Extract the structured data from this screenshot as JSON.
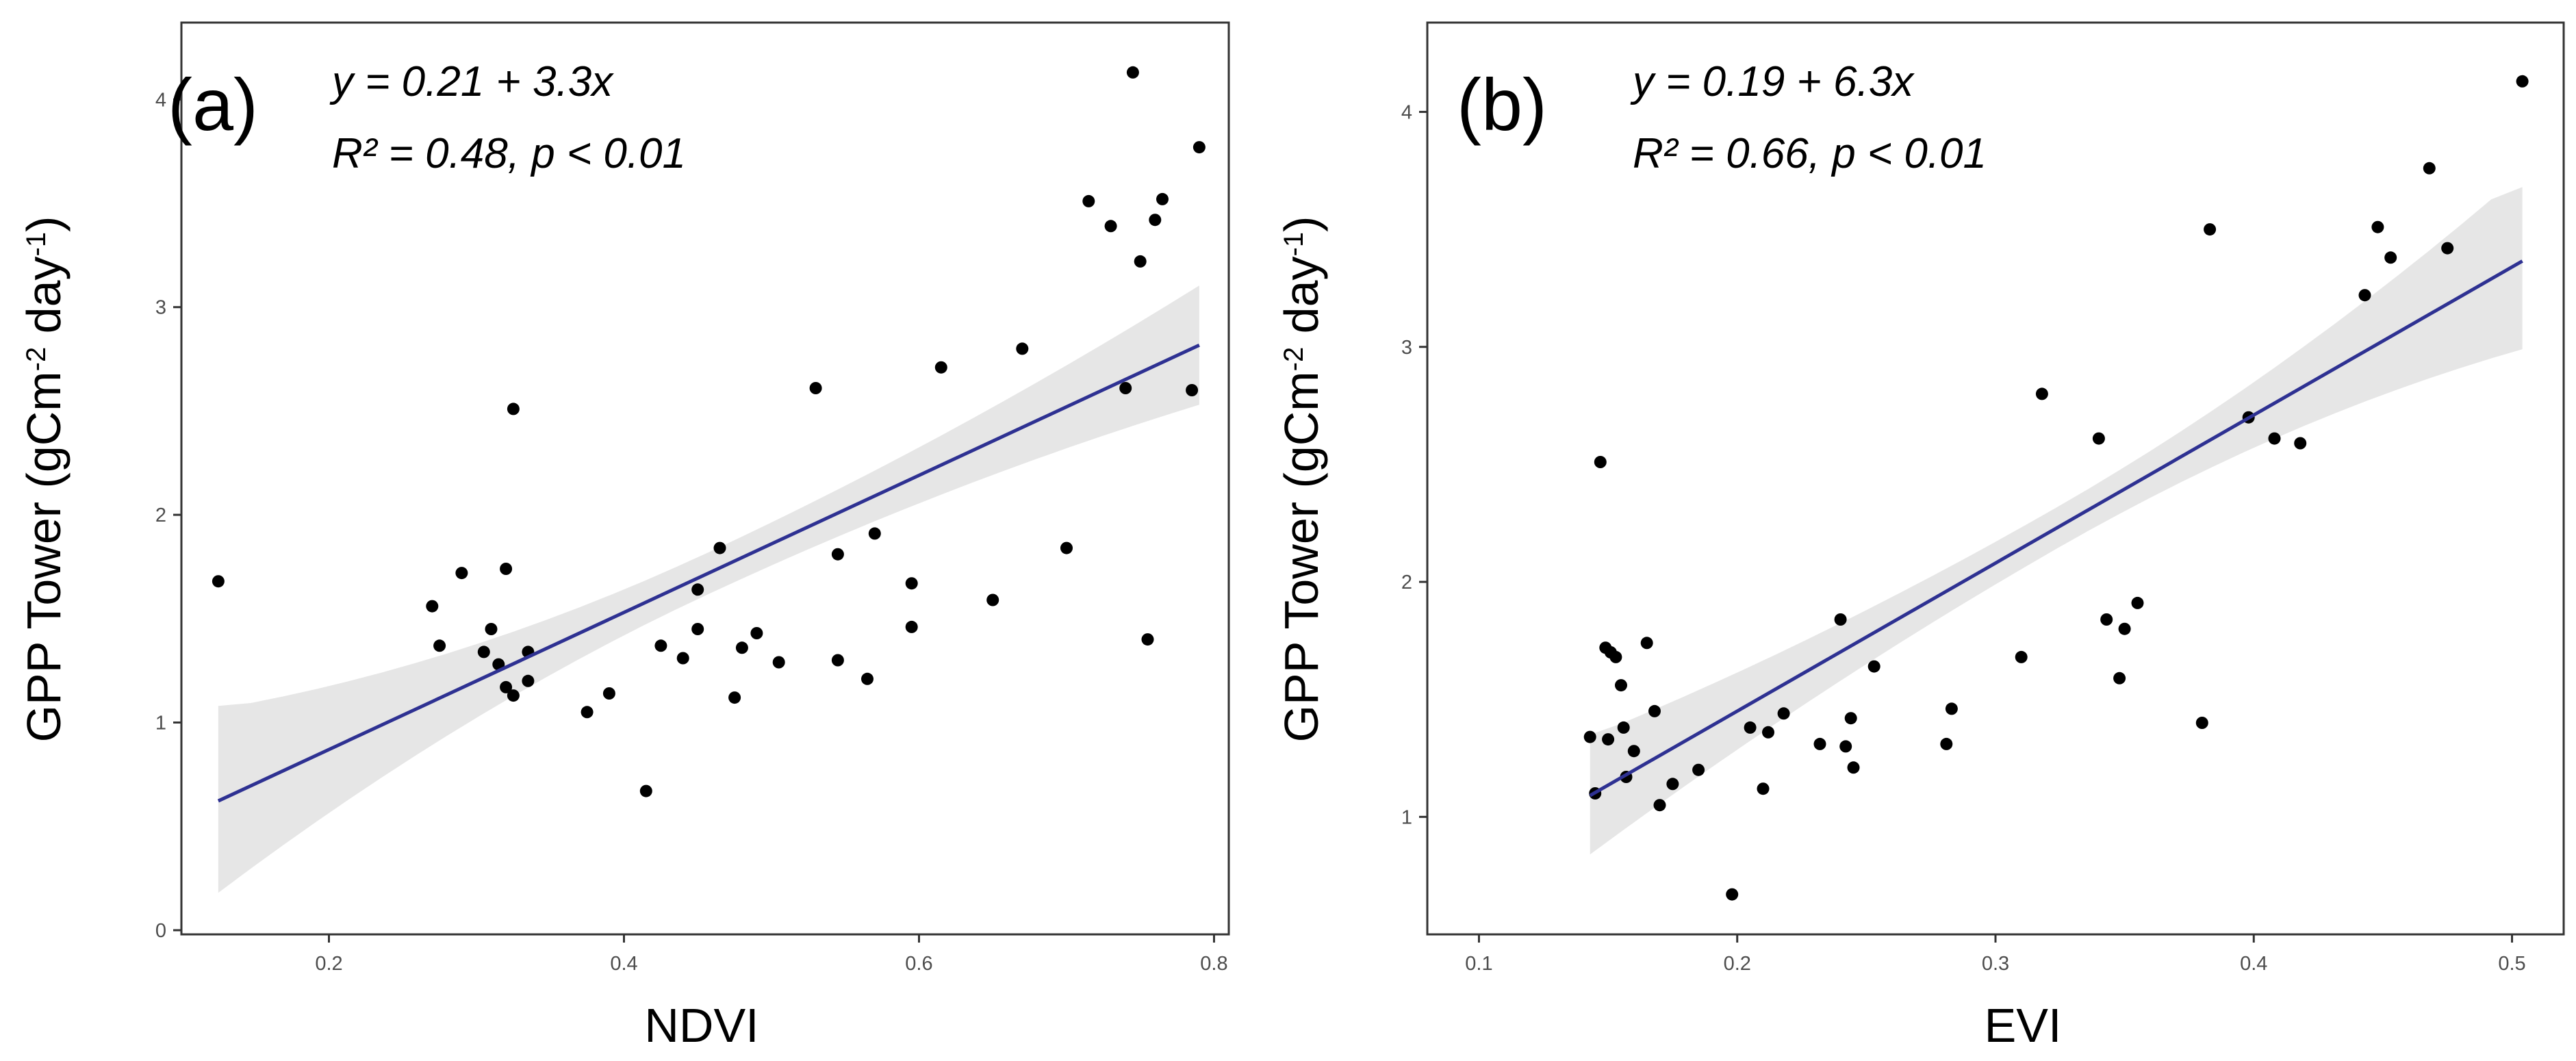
{
  "chart_data": [
    {
      "type": "scatter",
      "panel_label": "(a)",
      "equation": "y = 0.21 + 3.3x",
      "stats": "R² = 0.48,  p < 0.01",
      "xlabel": "NDVI",
      "ylabel": "GPP Tower (gCm",
      "ylabel_sup1": "-2",
      "ylabel_mid": " day",
      "ylabel_sup2": "-1",
      "ylabel_end": ")",
      "xlim": [
        0.1,
        0.81
      ],
      "ylim": [
        -0.02,
        4.37
      ],
      "x_ticks": [
        0.2,
        0.4,
        0.6,
        0.8
      ],
      "x_tick_labels": [
        "0.2",
        "0.4",
        "0.6",
        "0.8"
      ],
      "y_ticks": [
        0,
        1,
        2,
        3,
        4
      ],
      "y_tick_labels": [
        "0",
        "1",
        "2",
        "3",
        "4"
      ],
      "fit": {
        "intercept": 0.21,
        "slope": 3.3,
        "x_range": [
          0.125,
          0.79
        ],
        "ci_lower": [
          0.18,
          2.53
        ],
        "ci_upper": [
          1.08,
          3.2
        ]
      },
      "points": [
        [
          0.125,
          1.68
        ],
        [
          0.27,
          1.56
        ],
        [
          0.275,
          1.37
        ],
        [
          0.29,
          1.72
        ],
        [
          0.305,
          1.34
        ],
        [
          0.31,
          1.45
        ],
        [
          0.315,
          1.28
        ],
        [
          0.32,
          1.74
        ],
        [
          0.32,
          1.17
        ],
        [
          0.325,
          1.13
        ],
        [
          0.325,
          2.51
        ],
        [
          0.335,
          1.2
        ],
        [
          0.335,
          1.34
        ],
        [
          0.375,
          1.05
        ],
        [
          0.39,
          1.14
        ],
        [
          0.415,
          0.67
        ],
        [
          0.425,
          1.37
        ],
        [
          0.44,
          1.31
        ],
        [
          0.45,
          1.64
        ],
        [
          0.45,
          1.45
        ],
        [
          0.465,
          1.84
        ],
        [
          0.475,
          1.12
        ],
        [
          0.48,
          1.36
        ],
        [
          0.49,
          1.43
        ],
        [
          0.505,
          1.29
        ],
        [
          0.53,
          2.61
        ],
        [
          0.545,
          1.81
        ],
        [
          0.545,
          1.3
        ],
        [
          0.565,
          1.21
        ],
        [
          0.57,
          1.91
        ],
        [
          0.595,
          1.46
        ],
        [
          0.595,
          1.67
        ],
        [
          0.615,
          2.71
        ],
        [
          0.65,
          1.59
        ],
        [
          0.67,
          2.8
        ],
        [
          0.7,
          1.84
        ],
        [
          0.715,
          3.51
        ],
        [
          0.73,
          3.39
        ],
        [
          0.74,
          2.61
        ],
        [
          0.745,
          4.13
        ],
        [
          0.75,
          3.22
        ],
        [
          0.755,
          1.4
        ],
        [
          0.76,
          3.42
        ],
        [
          0.765,
          3.52
        ],
        [
          0.785,
          2.6
        ],
        [
          0.79,
          3.77
        ]
      ]
    },
    {
      "type": "scatter",
      "panel_label": "(b)",
      "equation": "y = 0.19 + 6.3x",
      "stats": "R² = 0.66,  p < 0.01",
      "xlabel": "EVI",
      "ylabel": "GPP Tower (gCm",
      "ylabel_sup1": "-2",
      "ylabel_mid": " day",
      "ylabel_sup2": "-1",
      "ylabel_end": ")",
      "xlim": [
        0.08,
        0.52
      ],
      "ylim": [
        0.5,
        4.38
      ],
      "x_ticks": [
        0.1,
        0.2,
        0.3,
        0.4,
        0.5
      ],
      "x_tick_labels": [
        "0.1",
        "0.2",
        "0.3",
        "0.4",
        "0.5"
      ],
      "y_ticks": [
        1,
        2,
        3,
        4
      ],
      "y_tick_labels": [
        "1",
        "2",
        "3",
        "4"
      ],
      "fit": {
        "intercept": 0.19,
        "slope": 6.3,
        "x_range": [
          0.143,
          0.504
        ],
        "ci_lower": [
          0.84,
          2.99
        ],
        "ci_upper": [
          1.35,
          3.68
        ]
      },
      "points": [
        [
          0.143,
          1.34
        ],
        [
          0.145,
          1.1
        ],
        [
          0.147,
          2.51
        ],
        [
          0.149,
          1.72
        ],
        [
          0.15,
          1.33
        ],
        [
          0.151,
          1.7
        ],
        [
          0.153,
          1.68
        ],
        [
          0.155,
          1.56
        ],
        [
          0.156,
          1.38
        ],
        [
          0.157,
          1.17
        ],
        [
          0.16,
          1.28
        ],
        [
          0.165,
          1.74
        ],
        [
          0.168,
          1.45
        ],
        [
          0.17,
          1.05
        ],
        [
          0.175,
          1.14
        ],
        [
          0.185,
          1.2
        ],
        [
          0.198,
          0.67
        ],
        [
          0.205,
          1.38
        ],
        [
          0.21,
          1.12
        ],
        [
          0.212,
          1.36
        ],
        [
          0.218,
          1.44
        ],
        [
          0.232,
          1.31
        ],
        [
          0.24,
          1.84
        ],
        [
          0.242,
          1.3
        ],
        [
          0.244,
          1.42
        ],
        [
          0.245,
          1.21
        ],
        [
          0.253,
          1.64
        ],
        [
          0.281,
          1.31
        ],
        [
          0.283,
          1.46
        ],
        [
          0.31,
          1.68
        ],
        [
          0.318,
          2.8
        ],
        [
          0.34,
          2.61
        ],
        [
          0.343,
          1.84
        ],
        [
          0.348,
          1.59
        ],
        [
          0.35,
          1.8
        ],
        [
          0.355,
          1.91
        ],
        [
          0.38,
          1.4
        ],
        [
          0.383,
          3.5
        ],
        [
          0.398,
          2.7
        ],
        [
          0.408,
          2.61
        ],
        [
          0.418,
          2.59
        ],
        [
          0.443,
          3.22
        ],
        [
          0.448,
          3.51
        ],
        [
          0.453,
          3.38
        ],
        [
          0.468,
          3.76
        ],
        [
          0.475,
          3.42
        ],
        [
          0.504,
          4.13
        ]
      ]
    }
  ],
  "colors": {
    "line": "#2e3192",
    "band": "#e6e6e6",
    "point": "#000000",
    "axis_text": "#4d4d4d",
    "frame": "#333333"
  }
}
